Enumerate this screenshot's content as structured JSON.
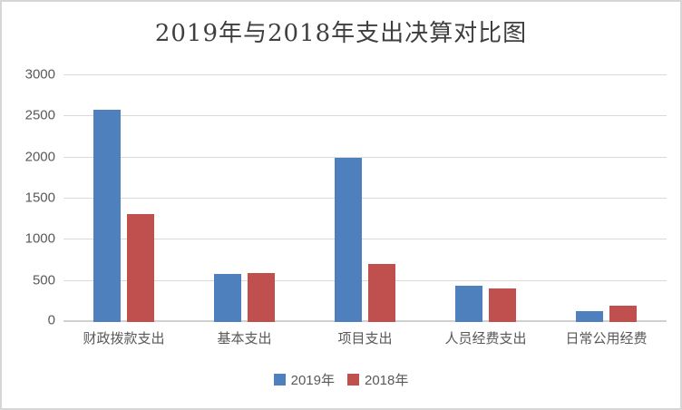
{
  "chart": {
    "title": "2019年与2018年支出决算对比图"
  },
  "chart_data": {
    "type": "bar",
    "title": "2019年与2018年支出决算对比图",
    "categories": [
      "财政拨款支出",
      "基本支出",
      "项目支出",
      "人员经费支出",
      "日常公用经费"
    ],
    "series": [
      {
        "name": "2019年",
        "color": "#4d80bc",
        "values": [
          2585,
          580,
          2000,
          440,
          135
        ]
      },
      {
        "name": "2018年",
        "color": "#c0504d",
        "values": [
          1315,
          600,
          705,
          410,
          195
        ]
      }
    ],
    "xlabel": "",
    "ylabel": "",
    "ylim": [
      0,
      3000
    ],
    "ytick_step": 500,
    "y_ticks": [
      0,
      500,
      1000,
      1500,
      2000,
      2500,
      3000
    ],
    "grid": true,
    "gridline_color": "#d9d9d9",
    "legend_position": "bottom"
  }
}
